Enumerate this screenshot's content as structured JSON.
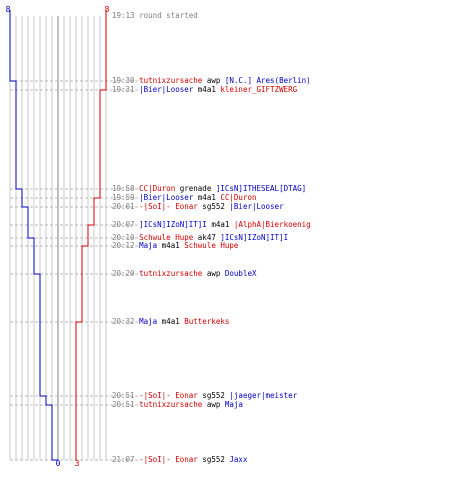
{
  "scoreboard": {
    "team_blue": {
      "color": "#0000c0",
      "start": "8",
      "end": "0"
    },
    "team_red": {
      "color": "#d00000",
      "start": "8",
      "end": "3"
    }
  },
  "events": [
    {
      "time": "19:13",
      "kind": "info",
      "text": "round started"
    },
    {
      "time": "19:30",
      "kind": "kill",
      "killer": "tutnixzursache",
      "killer_team": "red",
      "weapon": "awp",
      "victim": "[N.C.] Ares(Berlin)",
      "victim_team": "blue"
    },
    {
      "time": "19:31",
      "kind": "kill",
      "killer": "|Bier|Looser",
      "killer_team": "blue",
      "weapon": "m4a1",
      "victim": "kleiner_GIFTZWERG",
      "victim_team": "red"
    },
    {
      "time": "19:58",
      "kind": "kill",
      "killer": "CC|Duron",
      "killer_team": "red",
      "weapon": "grenade",
      "victim": "]ICsN]ITHESEAL[DTAG]",
      "victim_team": "blue"
    },
    {
      "time": "19:59",
      "kind": "kill",
      "killer": "|Bier|Looser",
      "killer_team": "blue",
      "weapon": "m4a1",
      "victim": "CC|Duron",
      "victim_team": "red"
    },
    {
      "time": "20:01",
      "kind": "kill",
      "killer": "-|SoI|- Eonar",
      "killer_team": "red",
      "weapon": "sg552",
      "victim": "|Bier|Looser",
      "victim_team": "blue"
    },
    {
      "time": "20:07",
      "kind": "kill",
      "killer": "]ICsN]IZoN]IT]I",
      "killer_team": "blue",
      "weapon": "m4a1",
      "victim": "|AlphA|Bierkoenig",
      "victim_team": "red"
    },
    {
      "time": "20:10",
      "kind": "kill",
      "killer": "Schwule Hupe",
      "killer_team": "red",
      "weapon": "ak47",
      "victim": "]ICsN]IZoN]IT]I",
      "victim_team": "blue"
    },
    {
      "time": "20:12",
      "kind": "kill",
      "killer": "Maja",
      "killer_team": "blue",
      "weapon": "m4a1",
      "victim": "Schwule Hupe",
      "victim_team": "red"
    },
    {
      "time": "20:20",
      "kind": "kill",
      "killer": "tutnixzursache",
      "killer_team": "red",
      "weapon": "awp",
      "victim": "DoubleX",
      "victim_team": "blue"
    },
    {
      "time": "20:32",
      "kind": "kill",
      "killer": "Maja",
      "killer_team": "blue",
      "weapon": "m4a1",
      "victim": "Butterkeks",
      "victim_team": "red"
    },
    {
      "time": "20:51",
      "kind": "kill",
      "killer": "-|SoI|- Eonar",
      "killer_team": "red",
      "weapon": "sg552",
      "victim": "|jaeger|meister",
      "victim_team": "blue"
    },
    {
      "time": "20:51",
      "kind": "kill",
      "killer": "tutnixzursache",
      "killer_team": "red",
      "weapon": "awp",
      "victim": "Maja",
      "victim_team": "blue"
    },
    {
      "time": "21:07",
      "kind": "kill",
      "killer": "-|SoI|- Eonar",
      "killer_team": "red",
      "weapon": "sg552",
      "victim": "Jaxx",
      "victim_team": "blue"
    }
  ]
}
